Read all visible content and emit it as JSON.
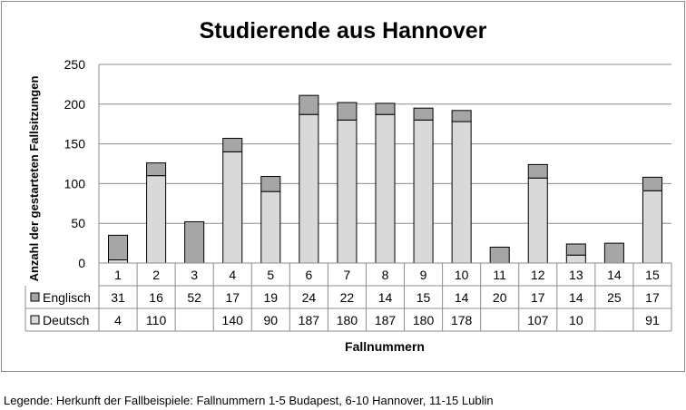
{
  "chart_data": {
    "type": "bar",
    "stacked": true,
    "title": "Studierende aus Hannover",
    "xlabel": "Fallnummern",
    "ylabel": "Anzahl der gestarteten Fallsitzungen",
    "ylim": [
      0,
      250
    ],
    "yticks": [
      0,
      50,
      100,
      150,
      200,
      250
    ],
    "grid": true,
    "legend_placement": "data-table-left",
    "categories": [
      "1",
      "2",
      "3",
      "4",
      "5",
      "6",
      "7",
      "8",
      "9",
      "10",
      "11",
      "12",
      "13",
      "14",
      "15"
    ],
    "series": [
      {
        "name": "Deutsch",
        "color": "#d9d9d9",
        "values": [
          4,
          110,
          null,
          140,
          90,
          187,
          180,
          187,
          180,
          178,
          null,
          107,
          10,
          null,
          91
        ]
      },
      {
        "name": "Englisch",
        "color": "#a6a6a6",
        "values": [
          31,
          16,
          52,
          17,
          19,
          24,
          22,
          14,
          15,
          14,
          20,
          17,
          14,
          25,
          17
        ]
      }
    ],
    "table_rows": [
      {
        "series": "Englisch",
        "cells": [
          "31",
          "16",
          "52",
          "17",
          "19",
          "24",
          "22",
          "14",
          "15",
          "14",
          "20",
          "17",
          "14",
          "25",
          "17"
        ]
      },
      {
        "series": "Deutsch",
        "cells": [
          "4",
          "110",
          "",
          "140",
          "90",
          "187",
          "180",
          "187",
          "180",
          "178",
          "",
          "107",
          "10",
          "",
          "91"
        ]
      }
    ]
  },
  "legend_note": "Legende: Herkunft der Fallbeispiele: Fallnummern 1-5 Budapest, 6-10 Hannover, 11-15 Lublin"
}
